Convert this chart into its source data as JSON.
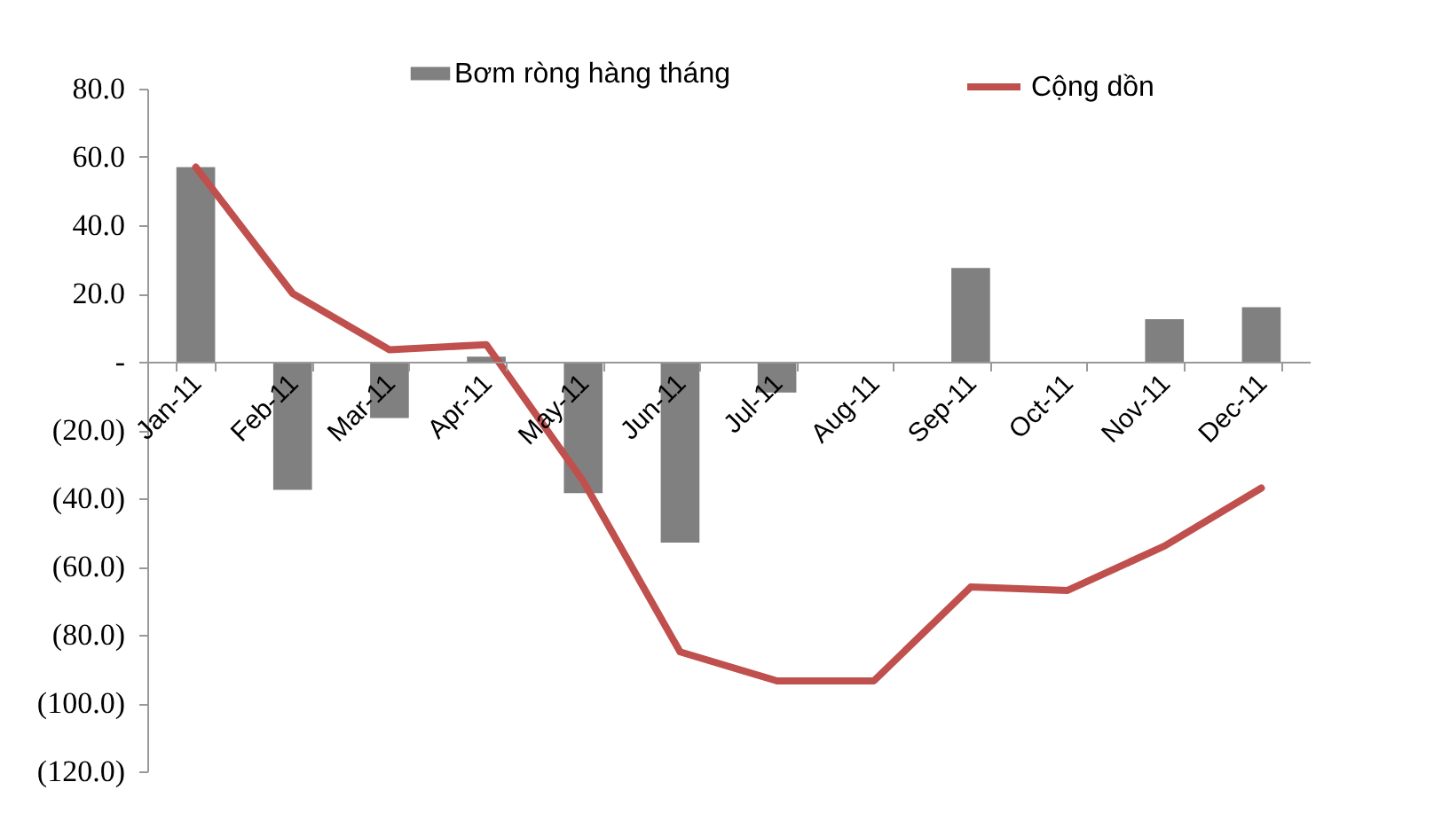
{
  "chart_data": {
    "type": "bar",
    "categories": [
      "Jan-11",
      "Feb-11",
      "Mar-11",
      "Apr-11",
      "May-11",
      "Jun-11",
      "Jul-11",
      "Aug-11",
      "Sep-11",
      "Oct-11",
      "Nov-11",
      "Dec-11"
    ],
    "series": [
      {
        "name": "Bơm ròng hàng tháng",
        "color": "#808080",
        "values": [
          57,
          -37.5,
          -16.5,
          1.5,
          -38.5,
          -53,
          -9,
          0,
          27.5,
          -0.5,
          12.5,
          16
        ]
      },
      {
        "name": "Cộng dồn",
        "type": "line",
        "color": "#c0504d",
        "values": [
          57,
          20,
          3.5,
          5,
          -35,
          -85,
          -93.5,
          -93.5,
          -66,
          -67,
          -54,
          -37
        ]
      }
    ],
    "ylim": [
      -120,
      80
    ],
    "yticks": [
      {
        "value": 80,
        "label": "80.0"
      },
      {
        "value": 60,
        "label": "60.0"
      },
      {
        "value": 40,
        "label": "40.0"
      },
      {
        "value": 20,
        "label": "20.0"
      },
      {
        "value": 0,
        "label": "-"
      },
      {
        "value": -20,
        "label": "(20.0)"
      },
      {
        "value": -40,
        "label": "(40.0)"
      },
      {
        "value": -60,
        "label": "(60.0)"
      },
      {
        "value": -80,
        "label": "(80.0)"
      },
      {
        "value": -100,
        "label": "(100.0)"
      },
      {
        "value": -120,
        "label": "(120.0)"
      }
    ],
    "legend": "top",
    "grid": false
  }
}
